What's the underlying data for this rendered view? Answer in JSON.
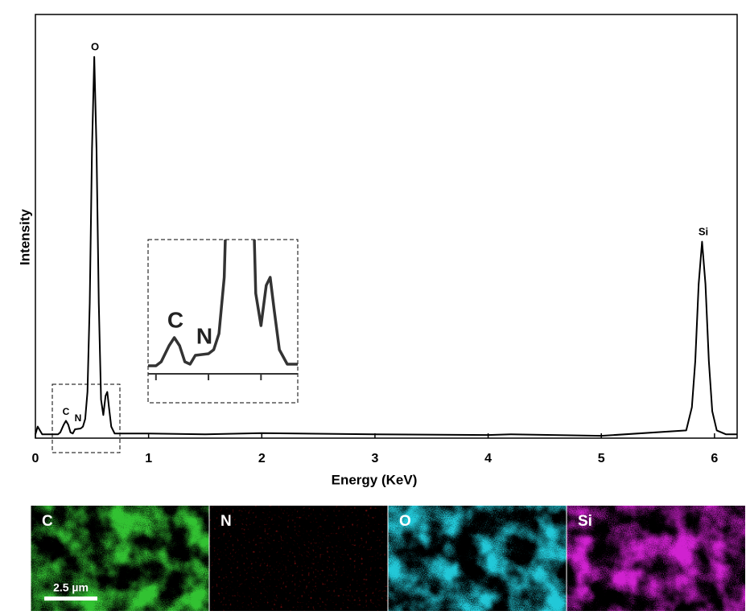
{
  "chart_data": {
    "type": "line",
    "x_label": "Energy (KeV)",
    "y_label": "Intensity",
    "color": "#000000",
    "xlim": [
      0,
      6.2
    ],
    "xticks": [
      0,
      1,
      2,
      3,
      4,
      5,
      6
    ],
    "ylim": [
      0,
      110
    ],
    "x": [
      0,
      0.02,
      0.06,
      0.2,
      0.22,
      0.25,
      0.27,
      0.29,
      0.31,
      0.33,
      0.35,
      0.4,
      0.42,
      0.44,
      0.46,
      0.48,
      0.5,
      0.52,
      0.54,
      0.56,
      0.58,
      0.6,
      0.62,
      0.635,
      0.65,
      0.67,
      0.7,
      1.0,
      1.5,
      2.0,
      3.0,
      4.0,
      4.2,
      5.0,
      5.75,
      5.8,
      5.83,
      5.86,
      5.89,
      5.92,
      5.95,
      5.98,
      6.02,
      6.1,
      6.2
    ],
    "y": [
      1,
      3,
      1,
      1,
      1.5,
      3.5,
      4.5,
      3.5,
      1.5,
      1.2,
      2.3,
      2.5,
      3,
      5,
      12,
      35,
      75,
      99,
      75,
      35,
      10,
      6,
      11,
      12,
      8,
      3,
      1.2,
      1.2,
      1,
      1.3,
      1,
      0.8,
      1,
      0.6,
      2,
      8,
      20,
      40,
      51,
      40,
      20,
      7,
      2,
      1,
      1
    ],
    "peak_labels": [
      "O",
      "Si",
      "C",
      "N"
    ],
    "inset": {
      "xlim": [
        0.17,
        0.74
      ],
      "ylim": [
        0,
        16.7
      ],
      "xticks": [
        0.2,
        0.4,
        0.6
      ],
      "labels": [
        "C",
        "N"
      ],
      "color": "#333333"
    },
    "maps": [
      {
        "label": "C",
        "color": "#33c233"
      },
      {
        "label": "N",
        "color": "#c81818"
      },
      {
        "label": "O",
        "color": "#22c8d8"
      },
      {
        "label": "Si",
        "color": "#d020d0"
      }
    ],
    "scale_bar": "2.5 µm"
  }
}
